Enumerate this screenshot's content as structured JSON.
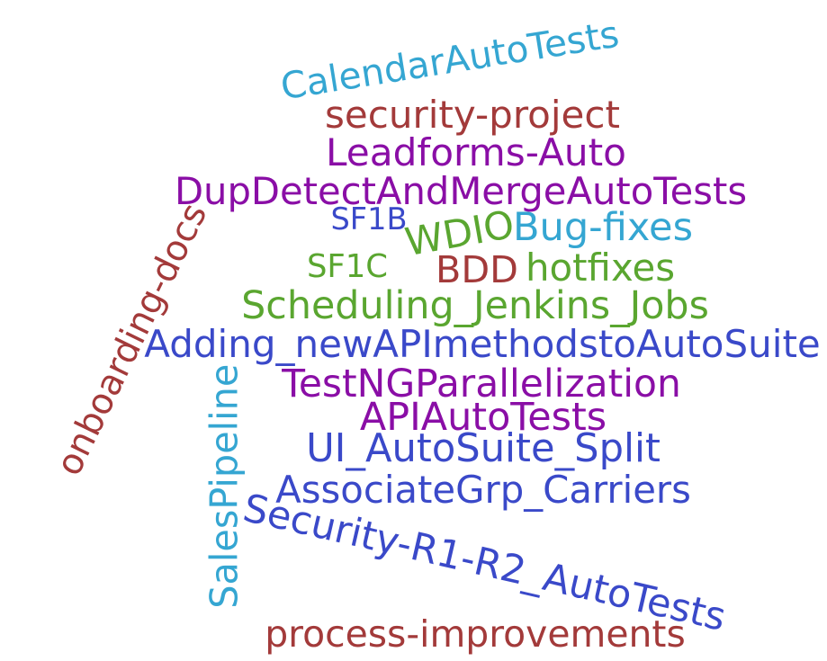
{
  "palette": {
    "blue": "#3a49c9",
    "purple": "#8a0ea6",
    "maroon": "#a33a3a",
    "green": "#5aa630",
    "cyan": "#35a6d2"
  },
  "words": [
    {
      "id": "calendarautotests",
      "text": "CalendarAutoTests",
      "color": "cyan"
    },
    {
      "id": "security-project",
      "text": "security-project",
      "color": "maroon"
    },
    {
      "id": "leadforms-auto",
      "text": "Leadforms-Auto",
      "color": "purple"
    },
    {
      "id": "dupdetectandmergeautotests",
      "text": "DupDetectAndMergeAutoTests",
      "color": "purple"
    },
    {
      "id": "sf1b",
      "text": "SF1B",
      "color": "blue"
    },
    {
      "id": "wdio",
      "text": "WDIO",
      "color": "green"
    },
    {
      "id": "bug-fixes",
      "text": "Bug-fixes",
      "color": "cyan"
    },
    {
      "id": "sf1c",
      "text": "SF1C",
      "color": "green"
    },
    {
      "id": "bdd",
      "text": "BDD",
      "color": "maroon"
    },
    {
      "id": "hotfixes",
      "text": "hotfixes",
      "color": "green"
    },
    {
      "id": "scheduling-jenkins-jobs",
      "text": "Scheduling_Jenkins_Jobs",
      "color": "green"
    },
    {
      "id": "adding-newapimethodstoautosuite",
      "text": "Adding_newAPImethodstoAutoSuite",
      "color": "blue"
    },
    {
      "id": "testngparallelization",
      "text": "TestNGParallelization",
      "color": "purple"
    },
    {
      "id": "apiautotests",
      "text": "APIAutoTests",
      "color": "purple"
    },
    {
      "id": "ui-autosuite-split",
      "text": "UI_AutoSuite_Split",
      "color": "blue"
    },
    {
      "id": "associategrp-carriers",
      "text": "AssociateGrp_Carriers",
      "color": "blue"
    },
    {
      "id": "security-r1-r2-autotests",
      "text": "Security-R1-R2_AutoTests",
      "color": "blue"
    },
    {
      "id": "process-improvements",
      "text": "process-improvements",
      "color": "maroon"
    },
    {
      "id": "onboarding-docs",
      "text": "onboarding-docs",
      "color": "maroon"
    },
    {
      "id": "salespipeline",
      "text": "SalesPipeline",
      "color": "cyan"
    }
  ]
}
